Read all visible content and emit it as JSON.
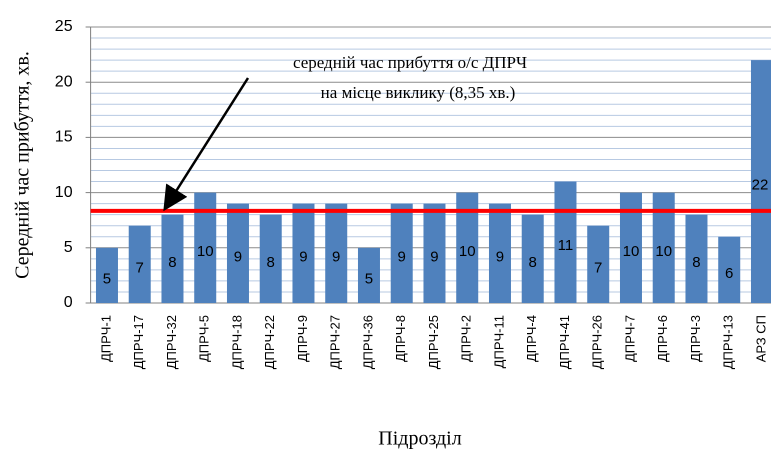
{
  "chart_data": {
    "type": "bar",
    "x_label": "Підрозділ",
    "y_label": "Середній час прибуття, хв.",
    "annotation": [
      "середній час прибуття о/с ДПРЧ",
      "на місце виклику (8,35 хв.)"
    ],
    "categories": [
      "ДПРЧ-1",
      "ДПРЧ-17",
      "ДПРЧ-32",
      "ДПРЧ-5",
      "ДПРЧ-18",
      "ДПРЧ-22",
      "ДПРЧ-9",
      "ДПРЧ-27",
      "ДПРЧ-36",
      "ДПРЧ-8",
      "ДПРЧ-25",
      "ДПРЧ-2",
      "ДПРЧ-11",
      "ДПРЧ-4",
      "ДПРЧ-41",
      "ДПРЧ-26",
      "ДПРЧ-7",
      "ДПРЧ-6",
      "ДПРЧ-3",
      "ДПРЧ-13",
      "АРЗ СП"
    ],
    "values": [
      5,
      7,
      8,
      10,
      9,
      8,
      9,
      9,
      5,
      9,
      9,
      10,
      9,
      8,
      11,
      7,
      10,
      10,
      8,
      6,
      22
    ],
    "color": "#4f81bd",
    "reference_line": {
      "value": 8.35,
      "color": "#ff0000"
    },
    "ylim": [
      0,
      25
    ],
    "yticks": [
      0,
      5,
      10,
      15,
      20,
      25
    ],
    "yminorticks": [
      1,
      2,
      3,
      4,
      6,
      7,
      8,
      9,
      11,
      12,
      13,
      14,
      16,
      17,
      18,
      19,
      21,
      22,
      23,
      24
    ],
    "grid": true
  }
}
